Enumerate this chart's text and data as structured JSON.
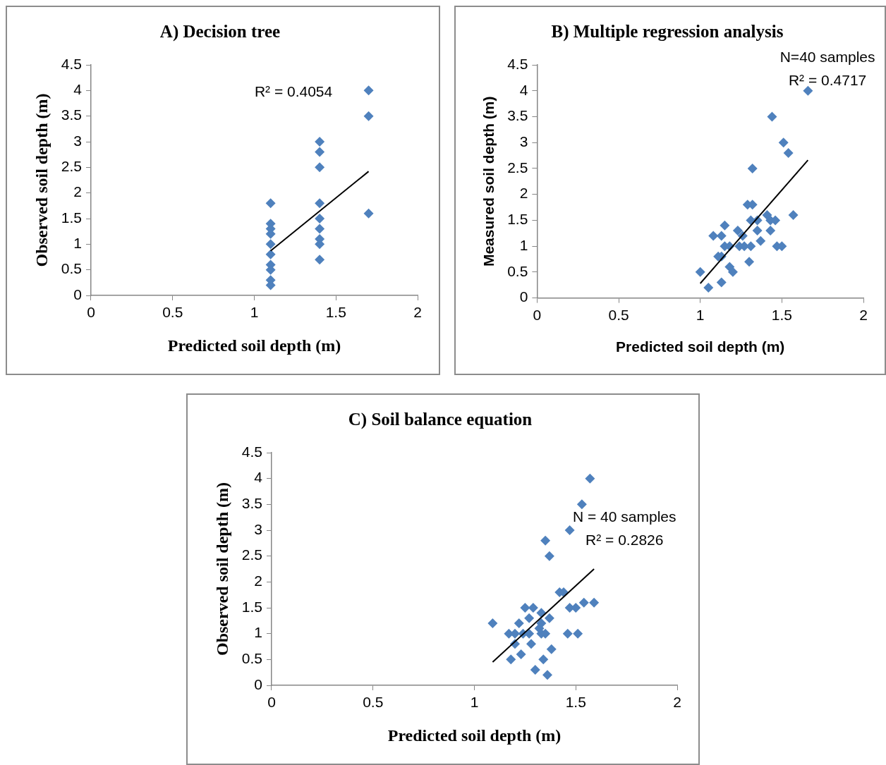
{
  "chart_data": [
    {
      "type": "scatter",
      "title": "A) Decision tree",
      "xlabel": "Predicted soil depth (m)",
      "ylabel": "Observed soil depth (m)",
      "annotations": [
        "R² = 0.4054"
      ],
      "xlim": [
        0,
        2
      ],
      "xticks": [
        0,
        0.5,
        1,
        1.5,
        2
      ],
      "ylim": [
        0,
        4.5
      ],
      "yticks": [
        0,
        0.5,
        1,
        1.5,
        2,
        2.5,
        3,
        3.5,
        4,
        4.5
      ],
      "grid": false,
      "legend": false,
      "series": [
        {
          "color": "#4f81bd",
          "marker": "diamond",
          "x": [
            1.1,
            1.1,
            1.1,
            1.1,
            1.1,
            1.1,
            1.1,
            1.1,
            1.1,
            1.1,
            1.4,
            1.4,
            1.4,
            1.4,
            1.4,
            1.4,
            1.4,
            1.4,
            1.4,
            1.7,
            1.7,
            1.7
          ],
          "values": [
            1.8,
            1.4,
            1.3,
            1.2,
            1.0,
            0.8,
            0.6,
            0.5,
            0.3,
            0.2,
            3.0,
            2.8,
            2.5,
            1.8,
            1.5,
            1.3,
            1.1,
            1.0,
            0.7,
            4.0,
            3.5,
            1.6
          ]
        },
        {
          "type": "line",
          "color": "#000000",
          "x": [
            1.1,
            1.7
          ],
          "values": [
            0.87,
            2.42
          ]
        }
      ]
    },
    {
      "type": "scatter",
      "title": "B) Multiple regression analysis",
      "xlabel": "Predicted soil depth (m)",
      "ylabel": "Measured soil depth (m)",
      "annotations": [
        "N=40 samples",
        "R² = 0.4717"
      ],
      "xlim": [
        0,
        2
      ],
      "xticks": [
        0,
        0.5,
        1,
        1.5,
        2
      ],
      "ylim": [
        0,
        4.5
      ],
      "yticks": [
        0,
        0.5,
        1,
        1.5,
        2,
        2.5,
        3,
        3.5,
        4,
        4.5
      ],
      "grid": false,
      "legend": false,
      "series": [
        {
          "color": "#4f81bd",
          "marker": "diamond",
          "x": [
            1.66,
            1.44,
            1.51,
            1.54,
            1.32,
            1.29,
            1.32,
            1.57,
            1.41,
            1.43,
            1.46,
            1.31,
            1.35,
            1.15,
            1.23,
            1.35,
            1.43,
            1.08,
            1.13,
            1.26,
            1.37,
            1.15,
            1.18,
            1.24,
            1.27,
            1.31,
            1.47,
            1.5,
            1.11,
            1.13,
            1.3,
            1.18,
            1.2,
            1.0,
            1.13,
            1.05
          ],
          "values": [
            4.0,
            3.5,
            3.0,
            2.8,
            2.5,
            1.8,
            1.8,
            1.6,
            1.6,
            1.5,
            1.5,
            1.5,
            1.5,
            1.4,
            1.3,
            1.3,
            1.3,
            1.2,
            1.2,
            1.2,
            1.1,
            1.0,
            1.0,
            1.0,
            1.0,
            1.0,
            1.0,
            1.0,
            0.8,
            0.8,
            0.7,
            0.6,
            0.5,
            0.5,
            0.3,
            0.2
          ]
        },
        {
          "type": "line",
          "color": "#000000",
          "x": [
            1.0,
            1.66
          ],
          "values": [
            0.28,
            2.66
          ]
        }
      ]
    },
    {
      "type": "scatter",
      "title": "C) Soil balance equation",
      "xlabel": "Predicted soil depth (m)",
      "ylabel": "Observed soil depth (m)",
      "annotations": [
        "N = 40 samples",
        "R² = 0.2826"
      ],
      "xlim": [
        0,
        2
      ],
      "xticks": [
        0,
        0.5,
        1,
        1.5,
        2
      ],
      "ylim": [
        0,
        4.5
      ],
      "yticks": [
        0,
        0.5,
        1,
        1.5,
        2,
        2.5,
        3,
        3.5,
        4,
        4.5
      ],
      "grid": false,
      "legend": false,
      "series": [
        {
          "color": "#4f81bd",
          "marker": "diamond",
          "x": [
            1.57,
            1.53,
            1.47,
            1.35,
            1.37,
            1.42,
            1.44,
            1.54,
            1.59,
            1.47,
            1.5,
            1.25,
            1.29,
            1.27,
            1.33,
            1.37,
            1.09,
            1.22,
            1.32,
            1.33,
            1.17,
            1.2,
            1.24,
            1.27,
            1.33,
            1.35,
            1.46,
            1.51,
            1.2,
            1.28,
            1.38,
            1.23,
            1.18,
            1.34,
            1.3,
            1.36
          ],
          "values": [
            4.0,
            3.5,
            3.0,
            2.8,
            2.5,
            1.8,
            1.8,
            1.6,
            1.6,
            1.5,
            1.5,
            1.5,
            1.5,
            1.3,
            1.4,
            1.3,
            1.2,
            1.2,
            1.1,
            1.2,
            1.0,
            1.0,
            1.0,
            1.0,
            1.0,
            1.0,
            1.0,
            1.0,
            0.8,
            0.8,
            0.7,
            0.6,
            0.5,
            0.5,
            0.3,
            0.2
          ]
        },
        {
          "type": "line",
          "color": "#000000",
          "x": [
            1.09,
            1.59
          ],
          "values": [
            0.45,
            2.25
          ]
        }
      ]
    }
  ]
}
